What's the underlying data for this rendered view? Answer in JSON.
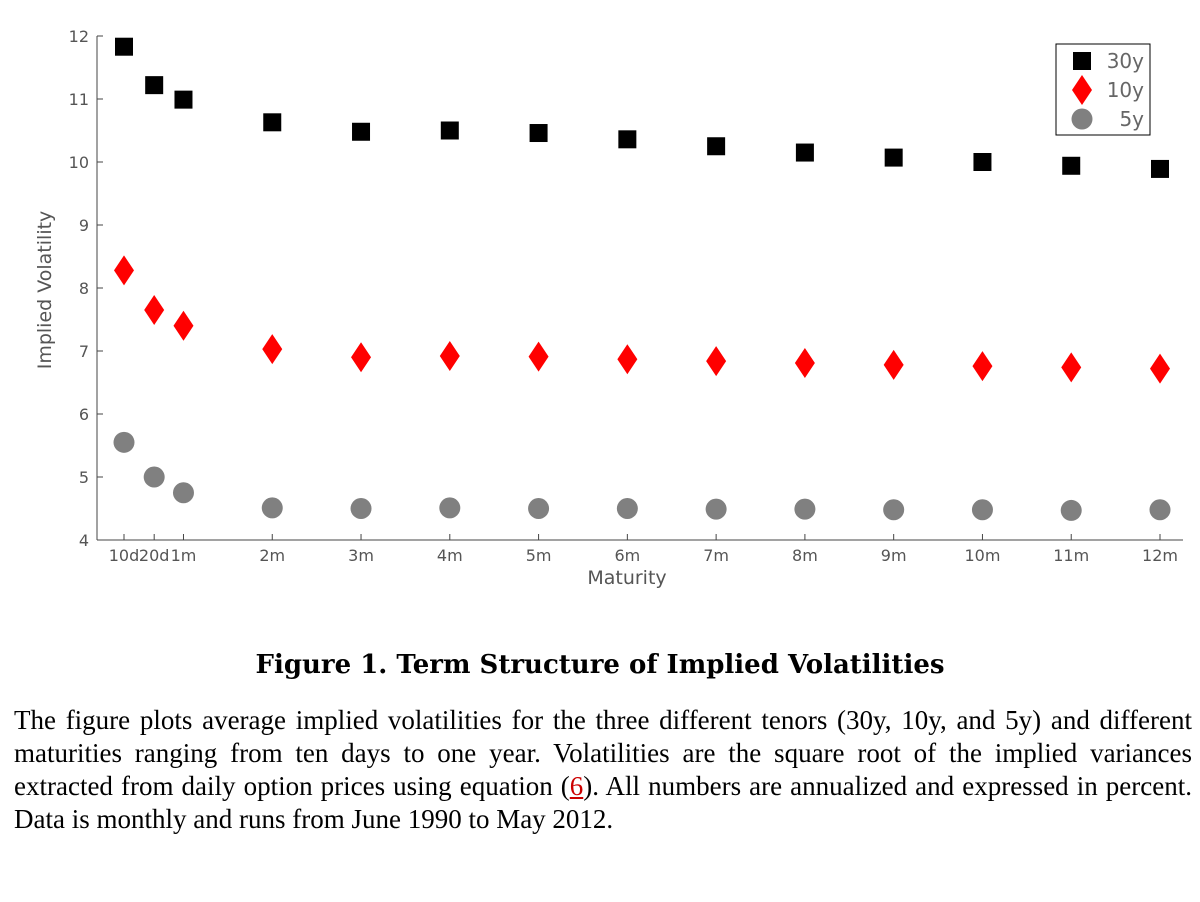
{
  "chart_data": {
    "type": "scatter",
    "xlabel": "Maturity",
    "ylabel": "Implied Volatility",
    "categories": [
      "10d",
      "20d",
      "1m",
      "2m",
      "3m",
      "4m",
      "5m",
      "6m",
      "7m",
      "8m",
      "9m",
      "10m",
      "11m",
      "12m"
    ],
    "x_months": [
      0.33,
      0.67,
      1,
      2,
      3,
      4,
      5,
      6,
      7,
      8,
      9,
      10,
      11,
      12
    ],
    "ylim": [
      4,
      12
    ],
    "yticks": [
      4,
      5,
      6,
      7,
      8,
      9,
      10,
      11,
      12
    ],
    "grid": false,
    "legend_position": "top-right",
    "series": [
      {
        "name": "30y",
        "marker": "square",
        "color": "#000000",
        "values": [
          11.83,
          11.22,
          10.99,
          10.63,
          10.48,
          10.5,
          10.46,
          10.36,
          10.25,
          10.15,
          10.07,
          10.0,
          9.94,
          9.89
        ]
      },
      {
        "name": "10y",
        "marker": "diamond",
        "color": "#ff0000",
        "values": [
          8.28,
          7.65,
          7.4,
          7.03,
          6.9,
          6.92,
          6.91,
          6.87,
          6.84,
          6.81,
          6.78,
          6.76,
          6.74,
          6.72
        ]
      },
      {
        "name": "5y",
        "marker": "circle",
        "color": "#808080",
        "values": [
          5.55,
          5.0,
          4.75,
          4.51,
          4.5,
          4.51,
          4.5,
          4.5,
          4.49,
          4.49,
          4.48,
          4.48,
          4.47,
          4.48
        ]
      }
    ]
  },
  "caption": {
    "title": "Figure 1. Term Structure of Implied Volatilities",
    "text_before_link": "The figure plots average implied volatilities for the three different tenors (30y, 10y, and 5y) and different maturities ranging from ten days to one year. Volatilities are the square root of the implied variances extracted from daily option prices using equation (",
    "equation_link": "6",
    "text_after_link": "). All numbers are annualized and expressed in percent. Data is monthly and runs from June 1990 to May 2012."
  }
}
